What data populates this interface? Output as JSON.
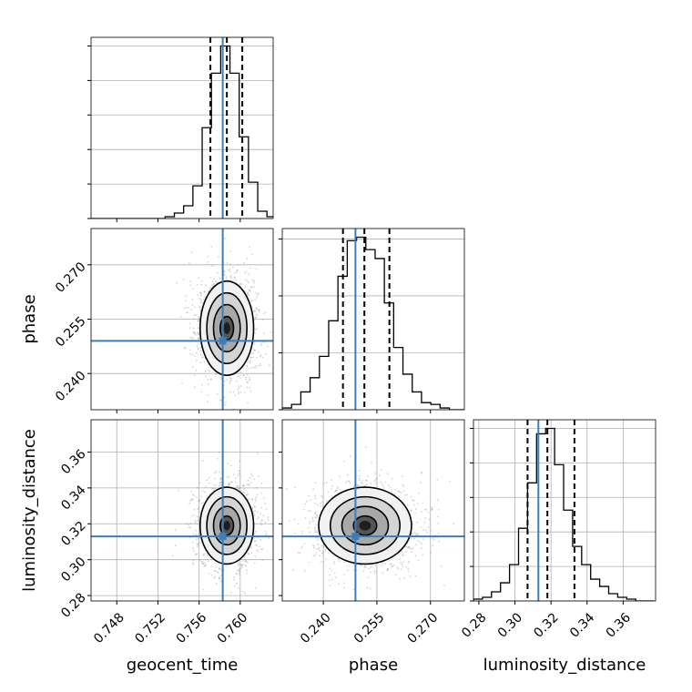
{
  "chart_data": {
    "type": "corner",
    "parameters": [
      "geocent_time",
      "phase",
      "luminosity_distance"
    ],
    "injection": {
      "geocent_time": 0.7583,
      "phase": 0.249,
      "luminosity_distance": 0.313
    },
    "grid": true,
    "colors": {
      "injection": "#3c7eb7",
      "hist": "#000000",
      "points": "#888888",
      "grid": "#b0b0b0"
    },
    "panels": [
      {
        "type": "histogram",
        "param": "geocent_time",
        "xlim": [
          0.7455,
          0.7632
        ],
        "quantiles": [
          0.7571,
          0.7587,
          0.7602
        ],
        "bin_edges": [
          0.7455,
          0.7464,
          0.7473,
          0.7482,
          0.7491,
          0.75,
          0.7509,
          0.7518,
          0.7527,
          0.7536,
          0.7545,
          0.7554,
          0.7563,
          0.7572,
          0.7581,
          0.759,
          0.7599,
          0.7608,
          0.7617,
          0.7626,
          0.7635
        ],
        "counts": [
          0,
          0,
          0,
          0,
          0,
          0,
          0,
          0,
          0.01,
          0.03,
          0.07,
          0.18,
          0.5,
          0.8,
          0.95,
          0.8,
          0.45,
          0.2,
          0.04,
          0.01
        ],
        "xticks": [],
        "yticks": [
          0,
          0.19,
          0.38,
          0.57,
          0.76,
          0.95
        ],
        "xlabel": "",
        "ylabel": ""
      },
      {
        "type": "hist2d",
        "xparam": "geocent_time",
        "yparam": "phase",
        "xlim": [
          0.7455,
          0.7632
        ],
        "ylim": [
          0.23,
          0.28
        ],
        "center": [
          0.7587,
          0.2525
        ],
        "sigma": [
          0.0013,
          0.0065
        ],
        "xticks": [],
        "yticks": [
          0.24,
          0.255,
          0.27
        ],
        "ytick_labels": [
          "0.240",
          "0.255",
          "0.270"
        ],
        "xlabel": "",
        "ylabel": "phase"
      },
      {
        "type": "histogram",
        "param": "phase",
        "xlim": [
          0.2285,
          0.2795
        ],
        "quantiles": [
          0.2455,
          0.2515,
          0.2585
        ],
        "bin_edges": [
          0.2285,
          0.2311,
          0.2337,
          0.2363,
          0.2389,
          0.2415,
          0.2441,
          0.2467,
          0.2493,
          0.2519,
          0.2545,
          0.2571,
          0.2597,
          0.2623,
          0.2649,
          0.2675,
          0.2701,
          0.2727,
          0.2753,
          0.2779,
          0.2795
        ],
        "counts": [
          0.01,
          0.03,
          0.1,
          0.18,
          0.3,
          0.5,
          0.75,
          0.95,
          0.97,
          0.9,
          0.85,
          0.6,
          0.35,
          0.2,
          0.1,
          0.04,
          0.03,
          0.01,
          0,
          0
        ],
        "xticks": [],
        "yticks": [
          0,
          0.32,
          0.64,
          0.96
        ],
        "xlabel": "",
        "ylabel": ""
      },
      {
        "type": "hist2d",
        "xparam": "geocent_time",
        "yparam": "luminosity_distance",
        "xlim": [
          0.7455,
          0.7632
        ],
        "ylim": [
          0.277,
          0.378
        ],
        "center": [
          0.7587,
          0.319
        ],
        "sigma": [
          0.0013,
          0.0107
        ],
        "xticks": [
          0.748,
          0.752,
          0.756,
          0.76
        ],
        "xtick_labels": [
          "0.748",
          "0.752",
          "0.756",
          "0.760"
        ],
        "yticks": [
          0.28,
          0.3,
          0.32,
          0.34,
          0.36
        ],
        "ytick_labels": [
          "0.28",
          "0.30",
          "0.32",
          "0.34",
          "0.36"
        ],
        "xlabel": "geocent_time",
        "ylabel": "luminosity_distance"
      },
      {
        "type": "hist2d",
        "xparam": "phase",
        "yparam": "luminosity_distance",
        "xlim": [
          0.2285,
          0.2795
        ],
        "ylim": [
          0.277,
          0.378
        ],
        "center": [
          0.2517,
          0.319
        ],
        "sigma": [
          0.0065,
          0.0107
        ],
        "xticks": [
          0.24,
          0.255,
          0.27
        ],
        "xtick_labels": [
          "0.240",
          "0.255",
          "0.270"
        ],
        "yticks": [],
        "xlabel": "phase",
        "ylabel": ""
      },
      {
        "type": "histogram",
        "param": "luminosity_distance",
        "xlim": [
          0.277,
          0.378
        ],
        "quantiles": [
          0.307,
          0.318,
          0.333
        ],
        "bin_edges": [
          0.277,
          0.282,
          0.287,
          0.292,
          0.297,
          0.302,
          0.307,
          0.312,
          0.317,
          0.322,
          0.327,
          0.332,
          0.337,
          0.342,
          0.347,
          0.352,
          0.357,
          0.362,
          0.367,
          0.372,
          0.377
        ],
        "counts": [
          0.01,
          0.02,
          0.05,
          0.1,
          0.2,
          0.4,
          0.65,
          0.92,
          0.95,
          0.75,
          0.5,
          0.3,
          0.2,
          0.12,
          0.08,
          0.04,
          0.02,
          0.01,
          0,
          0
        ],
        "xticks": [
          0.28,
          0.3,
          0.32,
          0.34,
          0.36
        ],
        "xtick_labels": [
          "0.28",
          "0.30",
          "0.32",
          "0.34",
          "0.36"
        ],
        "yticks": [
          0,
          0.19,
          0.38,
          0.57,
          0.76,
          0.95
        ],
        "xlabel": "luminosity_distance",
        "ylabel": ""
      }
    ]
  }
}
